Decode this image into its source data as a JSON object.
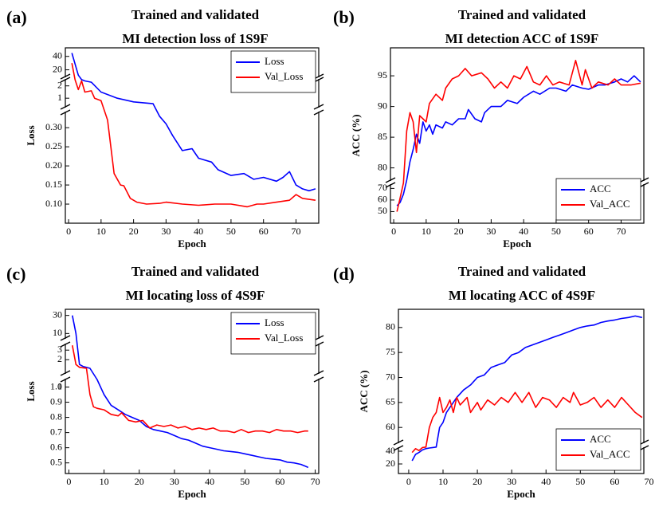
{
  "chart_data": [
    {
      "type": "line",
      "panel_label": "(a)",
      "title": [
        "Trained and validated",
        "MI detection loss of 1S9F"
      ],
      "xlabel": "Epoch",
      "ylabel": "Loss",
      "legend": "upper right",
      "xlim": [
        -1,
        77
      ],
      "xticks": [
        0,
        10,
        20,
        30,
        40,
        50,
        60,
        70
      ],
      "y_segments": [
        {
          "ylim": [
            0.05,
            0.34
          ],
          "yticks": [
            {
              "value": 0.1,
              "label": "0.10"
            },
            {
              "value": 0.15,
              "label": "0.15"
            },
            {
              "value": 0.2,
              "label": "0.20"
            },
            {
              "value": 0.25,
              "label": "0.25"
            },
            {
              "value": 0.3,
              "label": "0.30"
            }
          ]
        },
        {
          "ylim": [
            0.3,
            2.5
          ],
          "yticks": [
            1,
            2
          ]
        },
        {
          "ylim": [
            10,
            48
          ],
          "yticks": [
            20,
            40
          ]
        }
      ],
      "series": [
        {
          "name": "Loss",
          "color": "#0000ff",
          "x": [
            1,
            3,
            4,
            5,
            7,
            10,
            15,
            20,
            26,
            28,
            30,
            32,
            35,
            38,
            40,
            44,
            46,
            50,
            54,
            57,
            60,
            64,
            66,
            68,
            70,
            72,
            74,
            76
          ],
          "values": [
            45,
            12,
            2.6,
            2.4,
            2.3,
            1.5,
            1,
            0.7,
            0.55,
            0.33,
            0.31,
            0.28,
            0.24,
            0.245,
            0.22,
            0.21,
            0.19,
            0.175,
            0.18,
            0.165,
            0.17,
            0.16,
            0.17,
            0.185,
            0.15,
            0.14,
            0.135,
            0.14
          ]
        },
        {
          "name": "Val_Loss",
          "color": "#ff0000",
          "x": [
            1,
            2,
            3,
            4,
            5,
            7,
            8,
            10,
            12,
            13,
            14,
            16,
            17,
            19,
            21,
            24,
            28,
            30,
            35,
            40,
            45,
            50,
            55,
            58,
            60,
            64,
            68,
            70,
            72,
            76
          ],
          "values": [
            30,
            2.5,
            1.7,
            2.4,
            1.5,
            1.6,
            1,
            0.8,
            0.32,
            0.25,
            0.18,
            0.15,
            0.148,
            0.115,
            0.105,
            0.1,
            0.102,
            0.105,
            0.1,
            0.097,
            0.1,
            0.1,
            0.093,
            0.1,
            0.1,
            0.105,
            0.11,
            0.125,
            0.115,
            0.11
          ]
        }
      ]
    },
    {
      "type": "line",
      "panel_label": "(b)",
      "title": [
        "Trained and validated",
        "MI detection ACC of 1S9F"
      ],
      "xlabel": "Epoch",
      "ylabel": "ACC (%)",
      "legend": "lower right",
      "xlim": [
        -1,
        77
      ],
      "xticks": [
        0,
        10,
        20,
        30,
        40,
        50,
        60,
        70
      ],
      "y_segments": [
        {
          "ylim": [
            40,
            73
          ],
          "yticks": [
            50,
            60,
            70
          ]
        },
        {
          "ylim": [
            78,
            98
          ],
          "yticks": [
            80,
            85,
            90,
            95
          ]
        }
      ],
      "series": [
        {
          "name": "ACC",
          "color": "#0000ff",
          "x": [
            1,
            2,
            3,
            4,
            5,
            6,
            7,
            8,
            9,
            10,
            11,
            12,
            13,
            15,
            16,
            18,
            20,
            22,
            23,
            25,
            27,
            28,
            30,
            33,
            35,
            38,
            40,
            43,
            45,
            48,
            50,
            53,
            55,
            58,
            60,
            63,
            65,
            68,
            70,
            72,
            74,
            76
          ],
          "values": [
            55,
            58,
            65,
            78,
            81,
            83,
            85.5,
            84,
            87.5,
            86,
            87,
            85.5,
            87,
            86.5,
            87.5,
            87,
            88,
            88,
            89.5,
            88,
            87.5,
            89,
            90,
            90,
            91,
            90.5,
            91.5,
            92.5,
            92,
            93,
            93,
            92.5,
            93.5,
            93,
            92.8,
            93.5,
            93.5,
            94,
            94.5,
            94,
            95,
            94
          ]
        },
        {
          "name": "Val_ACC",
          "color": "#ff0000",
          "x": [
            1,
            2,
            3,
            4,
            5,
            6,
            7,
            8,
            9,
            10,
            11,
            13,
            15,
            16,
            18,
            20,
            22,
            24,
            27,
            29,
            31,
            33,
            35,
            37,
            39,
            41,
            43,
            45,
            47,
            49,
            51,
            54,
            56,
            58,
            59,
            61,
            63,
            66,
            68,
            70,
            73,
            76
          ],
          "values": [
            50,
            62,
            75,
            86,
            89,
            87.5,
            82.5,
            88.5,
            88,
            87.5,
            90.5,
            92,
            91,
            93,
            94.5,
            95,
            96.2,
            95,
            95.5,
            94.5,
            93,
            94,
            93,
            95,
            94.5,
            96.5,
            94,
            93.5,
            95,
            93.5,
            94,
            93.5,
            97.5,
            93.5,
            96,
            93,
            94,
            93.5,
            94.5,
            93.5,
            93.5,
            93.8
          ]
        }
      ]
    },
    {
      "type": "line",
      "panel_label": "(c)",
      "title": [
        "Trained and validated",
        "MI locating loss of 4S9F"
      ],
      "xlabel": "Epoch",
      "ylabel": "Loss",
      "legend": "upper right",
      "xlim": [
        -1,
        71
      ],
      "xticks": [
        0,
        10,
        20,
        30,
        40,
        50,
        60,
        70
      ],
      "y_segments": [
        {
          "ylim": [
            0.43,
            1.05
          ],
          "yticks": [
            0.5,
            0.6,
            0.7,
            0.8,
            0.9,
            {
              "value": 1,
              "label": "1.0"
            }
          ]
        },
        {
          "ylim": [
            0.6,
            3.6
          ],
          "yticks": [
            1,
            2,
            3
          ]
        },
        {
          "ylim": [
            5,
            35
          ],
          "yticks": [
            10,
            30
          ]
        }
      ],
      "series": [
        {
          "name": "Loss",
          "color": "#0000ff",
          "x": [
            1,
            2,
            3,
            4,
            6,
            8,
            9,
            10,
            12,
            14,
            16,
            18,
            20,
            22,
            24,
            26,
            28,
            30,
            32,
            34,
            36,
            38,
            40,
            42,
            44,
            46,
            48,
            50,
            52,
            54,
            56,
            58,
            60,
            62,
            64,
            66,
            68
          ],
          "values": [
            30,
            10,
            1.5,
            1.3,
            1.1,
            1.05,
            1,
            0.95,
            0.88,
            0.85,
            0.82,
            0.8,
            0.78,
            0.74,
            0.72,
            0.71,
            0.7,
            0.68,
            0.66,
            0.65,
            0.63,
            0.61,
            0.6,
            0.59,
            0.58,
            0.575,
            0.57,
            0.56,
            0.55,
            0.54,
            0.53,
            0.525,
            0.52,
            0.505,
            0.5,
            0.49,
            0.47
          ]
        },
        {
          "name": "Val_Loss",
          "color": "#ff0000",
          "x": [
            1,
            2,
            3,
            5,
            6,
            7,
            8,
            10,
            12,
            14,
            15,
            17,
            19,
            21,
            23,
            25,
            27,
            29,
            31,
            33,
            35,
            37,
            39,
            41,
            43,
            45,
            47,
            49,
            51,
            53,
            55,
            57,
            59,
            61,
            63,
            65,
            67,
            68
          ],
          "values": [
            3.5,
            1.5,
            1.2,
            1.1,
            0.95,
            0.87,
            0.86,
            0.85,
            0.82,
            0.81,
            0.83,
            0.78,
            0.77,
            0.78,
            0.73,
            0.75,
            0.74,
            0.75,
            0.73,
            0.74,
            0.72,
            0.73,
            0.72,
            0.73,
            0.71,
            0.71,
            0.7,
            0.72,
            0.7,
            0.71,
            0.71,
            0.7,
            0.72,
            0.71,
            0.71,
            0.7,
            0.71,
            0.71
          ]
        }
      ]
    },
    {
      "type": "line",
      "panel_label": "(d)",
      "title": [
        "Trained and validated",
        "MI locating ACC of 4S9F"
      ],
      "xlabel": "Epoch",
      "ylabel": "ACC (%)",
      "legend": "lower right",
      "xlim": [
        -3,
        68.5
      ],
      "xticks": [
        0,
        10,
        20,
        30,
        40,
        50,
        60,
        70
      ],
      "y_segments": [
        {
          "ylim": [
            5,
            45
          ],
          "yticks": [
            20,
            40
          ]
        },
        {
          "ylim": [
            57,
            83
          ],
          "yticks": [
            60,
            65,
            70,
            75,
            80
          ]
        }
      ],
      "series": [
        {
          "name": "ACC",
          "color": "#0000ff",
          "x": [
            1,
            2,
            3,
            4,
            5,
            6,
            7,
            8,
            9,
            10,
            11,
            12,
            14,
            16,
            18,
            20,
            22,
            24,
            26,
            28,
            30,
            32,
            34,
            36,
            38,
            40,
            42,
            44,
            46,
            48,
            50,
            52,
            54,
            56,
            58,
            60,
            62,
            64,
            66,
            68
          ],
          "values": [
            25,
            35,
            38,
            42,
            44,
            45,
            46,
            47,
            60,
            61,
            63,
            64,
            66,
            67.5,
            68.5,
            70,
            70.5,
            72,
            72.5,
            73,
            74.5,
            75,
            76,
            76.5,
            77,
            77.5,
            78,
            78.5,
            79,
            79.5,
            80,
            80.3,
            80.5,
            81,
            81.3,
            81.5,
            81.8,
            82,
            82.3,
            82
          ]
        },
        {
          "name": "Val_ACC",
          "color": "#ff0000",
          "x": [
            1,
            2,
            3,
            4,
            5,
            6,
            7,
            8,
            9,
            10,
            11,
            12,
            13,
            14,
            15,
            17,
            18,
            20,
            21,
            23,
            25,
            27,
            29,
            31,
            33,
            35,
            37,
            39,
            41,
            43,
            45,
            47,
            48,
            50,
            52,
            54,
            56,
            58,
            60,
            62,
            64,
            66,
            68
          ],
          "values": [
            38,
            44,
            41,
            46,
            47,
            60,
            62,
            63,
            66,
            63,
            64,
            65.5,
            63,
            66,
            64.5,
            66,
            63,
            65,
            63.5,
            65.5,
            64.5,
            66,
            65,
            67,
            65,
            67,
            64,
            66,
            65.5,
            64,
            66,
            65,
            67,
            64.5,
            65,
            66,
            64,
            65.5,
            64,
            66,
            64.5,
            63,
            62
          ]
        }
      ]
    }
  ]
}
